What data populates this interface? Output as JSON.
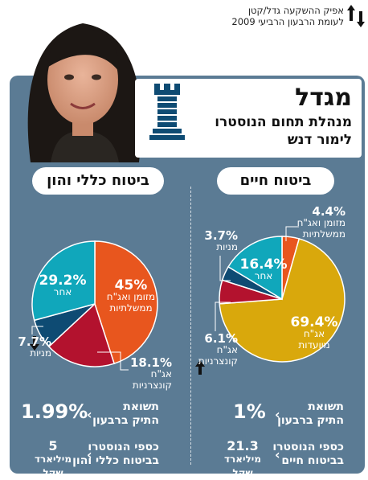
{
  "header_note": {
    "line1": "אפיק ההשקעה גדל/קטן",
    "line2": "לעומת הרבעון הרביעי 2009"
  },
  "company": {
    "name": "מגדל",
    "role": "מנהלת תחום הנוסטרו",
    "manager": "לימור דנש"
  },
  "colors": {
    "panel": "#5b7b94",
    "gov": "#e8561e",
    "other": "#10a7bb",
    "stocks": "#0e4b73",
    "corporate": "#b3122e",
    "earmarked": "#d9a80c"
  },
  "sections": {
    "life": {
      "title": "ביטוח חיים",
      "labels": {
        "gov": {
          "value": "4.4%",
          "text1": "מזומן ואג\"ח",
          "text2": "ממשלתיות"
        },
        "stocks": {
          "value": "3.7%",
          "text1": "מניות"
        },
        "other": {
          "value": "16.4%",
          "text1": "אחר"
        },
        "earmarked": {
          "value": "69.4%",
          "text1": "אג\"ח",
          "text2": "מיועדות"
        },
        "corporate": {
          "value": "6.1%",
          "text1": "אג\"ח",
          "text2": "קונצרניות"
        }
      },
      "return_label1": "תשואת",
      "return_label2": "התיק ברבעון",
      "return_value": "1%",
      "nostro_label1": "כספי הנוסטרו",
      "nostro_label2": "בביטוח חיים",
      "nostro_value": "21.3",
      "nostro_unit": "מיליארד שקל"
    },
    "general": {
      "title": "ביטוח כללי והון",
      "labels": {
        "other": {
          "value": "29.2%",
          "text1": "אחר"
        },
        "gov": {
          "value": "45%",
          "text1": "מזומן ואג\"ח",
          "text2": "ממשלתיות"
        },
        "stocks": {
          "value": "7.7%",
          "text1": "מניות"
        },
        "corporate": {
          "value": "18.1%",
          "text1": "אג\"ח",
          "text2": "קונצרניות"
        }
      },
      "return_label1": "תשואת",
      "return_label2": "התיק ברבעון",
      "return_value": "1.99%",
      "nostro_label1": "כספי הנוסטרו",
      "nostro_label2": "בביטוח כללי והון",
      "nostro_value": "5",
      "nostro_unit": "מיליארד שקל"
    }
  },
  "chart_data": [
    {
      "type": "pie",
      "title": "ביטוח חיים",
      "categories": [
        "מזומן ואג\"ח ממשלתיות",
        "אג\"ח מיועדות",
        "אג\"ח קונצרניות",
        "מניות",
        "אחר"
      ],
      "values": [
        4.4,
        69.4,
        6.1,
        3.7,
        16.4
      ],
      "colors": [
        "#e8561e",
        "#d9a80c",
        "#b3122e",
        "#0e4b73",
        "#10a7bb"
      ]
    },
    {
      "type": "pie",
      "title": "ביטוח כללי והון",
      "categories": [
        "מזומן ואג\"ח ממשלתיות",
        "אג\"ח קונצרניות",
        "מניות",
        "אחר"
      ],
      "values": [
        45,
        18.1,
        7.7,
        29.2
      ],
      "colors": [
        "#e8561e",
        "#b3122e",
        "#0e4b73",
        "#10a7bb"
      ],
      "trend": {
        "אג\"ח קונצרניות": "up",
        "מניות": "down"
      }
    }
  ]
}
